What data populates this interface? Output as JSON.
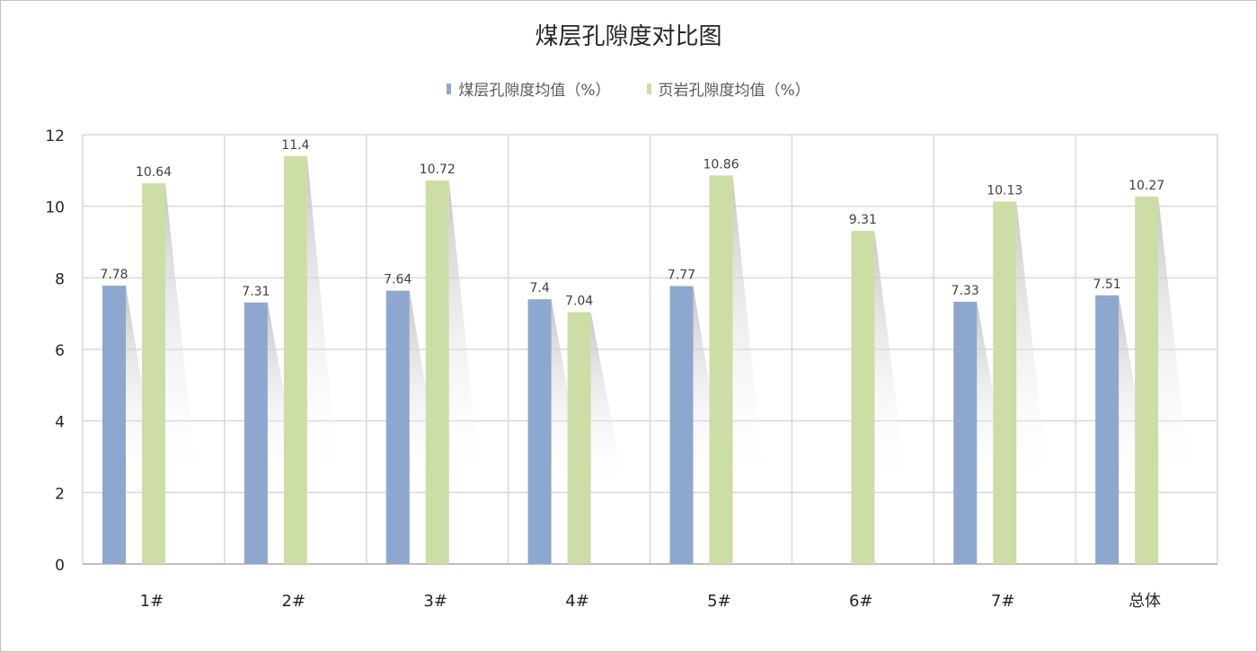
{
  "chart_data": {
    "type": "bar",
    "title": "煤层孔隙度对比图",
    "categories": [
      "1#",
      "2#",
      "3#",
      "4#",
      "5#",
      "6#",
      "7#",
      "总体"
    ],
    "series": [
      {
        "name": "煤层孔隙度均值（%）",
        "color": "#8EA7CE",
        "values": [
          7.78,
          7.31,
          7.64,
          7.4,
          7.77,
          null,
          7.33,
          7.51
        ]
      },
      {
        "name": "页岩孔隙度均值（%）",
        "color": "#CCDDA6",
        "values": [
          10.64,
          11.4,
          10.72,
          7.04,
          10.86,
          9.31,
          10.13,
          10.27
        ]
      }
    ],
    "ylim": [
      0,
      12
    ],
    "yticks": [
      0,
      2,
      4,
      6,
      8,
      10,
      12
    ],
    "xlabel": "",
    "ylabel": "",
    "grid": true,
    "legend": "top"
  }
}
